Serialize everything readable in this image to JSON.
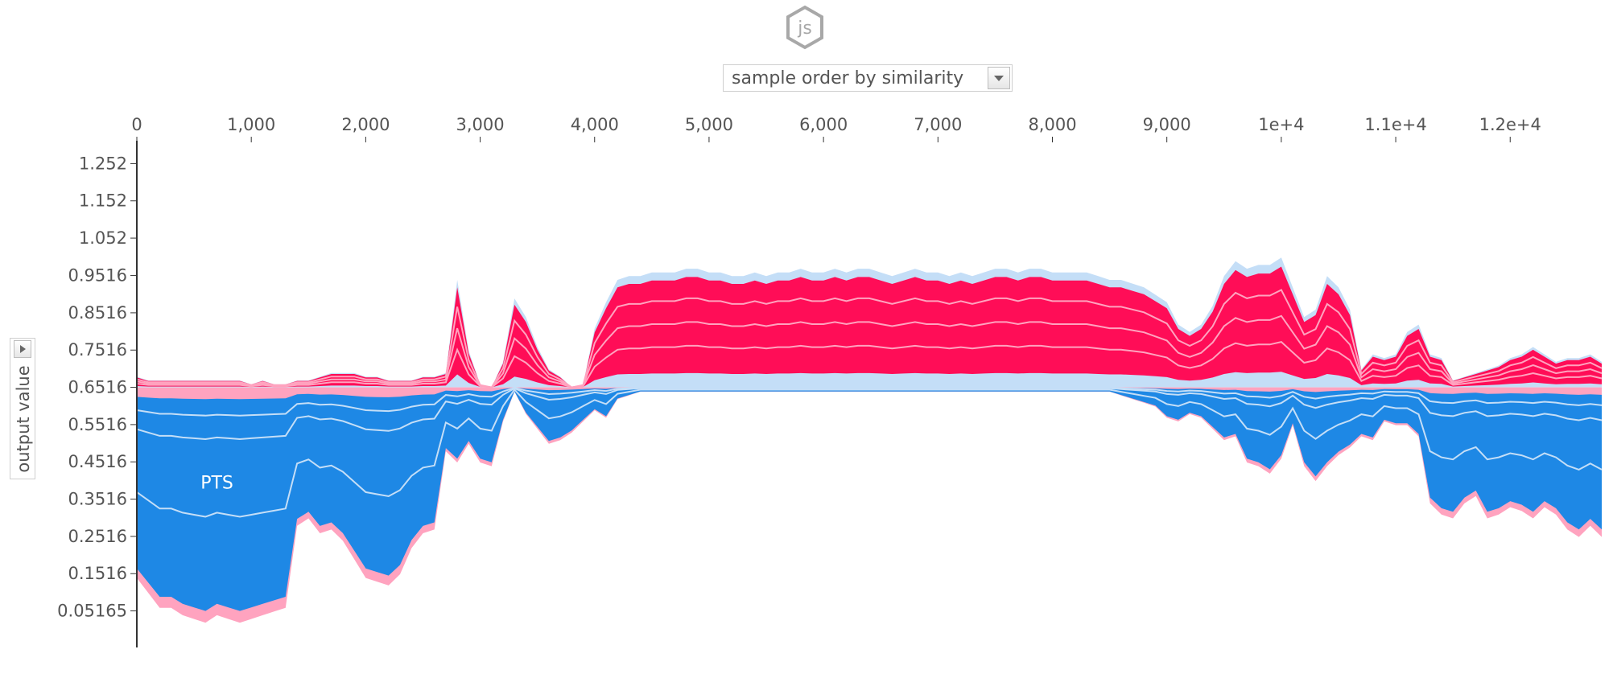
{
  "badge": {
    "label": "js",
    "icon": "js-hexagon-icon"
  },
  "controls": {
    "order_select": {
      "selected": "sample order by similarity",
      "icon": "chevron-down-icon"
    },
    "yaxis_select": {
      "selected": "output value",
      "icon": "chevron-right-icon"
    }
  },
  "colors": {
    "positive": "#ff0d57",
    "positive_light": "#ffa3bf",
    "negative": "#1e88e5",
    "negative_light": "#c4def7",
    "axis": "#333333",
    "text": "#555555"
  },
  "chart_data": {
    "type": "area",
    "title": "",
    "xlabel": "",
    "ylabel": "output value",
    "x_ticks": [
      "0",
      "1,000",
      "2,000",
      "3,000",
      "4,000",
      "5,000",
      "6,000",
      "7,000",
      "8,000",
      "9,000",
      "1e+4",
      "1.1e+4",
      "1.2e+4"
    ],
    "x_tick_values": [
      0,
      1000,
      2000,
      3000,
      4000,
      5000,
      6000,
      7000,
      8000,
      9000,
      10000,
      11000,
      12000
    ],
    "y_ticks": [
      "1.252",
      "1.152",
      "1.052",
      "0.9516",
      "0.8516",
      "0.7516",
      "0.6516",
      "0.5516",
      "0.4516",
      "0.3516",
      "0.2516",
      "0.1516",
      "0.05165"
    ],
    "y_tick_values": [
      1.252,
      1.152,
      1.052,
      0.9516,
      0.8516,
      0.7516,
      0.6516,
      0.5516,
      0.4516,
      0.3516,
      0.2516,
      0.1516,
      0.05165
    ],
    "xlim": [
      0,
      12800
    ],
    "ylim": [
      -0.04,
      1.35
    ],
    "base_value": 0.6516,
    "annotations": [
      {
        "text": "PTS",
        "x": 700,
        "y": 0.38
      }
    ],
    "series": [
      {
        "x": [
          0,
          100,
          200,
          300,
          400,
          500,
          600,
          700,
          800,
          900,
          1000,
          1100,
          1200,
          1300,
          1400,
          1500,
          1600,
          1700,
          1800,
          1900,
          2000,
          2100,
          2200,
          2300,
          2400,
          2500,
          2600,
          2700,
          2800,
          2900,
          3000,
          3100,
          3200,
          3300,
          3400,
          3500,
          3600,
          3700,
          3800,
          3900,
          4000,
          4100,
          4200,
          4300,
          4400,
          4500,
          4600,
          4700,
          4800,
          4900,
          5000,
          5100,
          5200,
          5300,
          5400,
          5500,
          5600,
          5700,
          5800,
          5900,
          6000,
          6100,
          6200,
          6300,
          6400,
          6500,
          6600,
          6700,
          6800,
          6900,
          7000,
          7100,
          7200,
          7300,
          7400,
          7500,
          7600,
          7700,
          7800,
          7900,
          8000,
          8100,
          8200,
          8300,
          8400,
          8500,
          8600,
          8700,
          8800,
          8900,
          9000,
          9100,
          9200,
          9300,
          9400,
          9500,
          9600,
          9700,
          9800,
          9900,
          10000,
          10100,
          10200,
          10300,
          10400,
          10500,
          10600,
          10700,
          10800,
          10900,
          11000,
          11100,
          11200,
          11300,
          11400,
          11500,
          11600,
          11700,
          11800,
          11900,
          12000,
          12100,
          12200,
          12300,
          12400,
          12500,
          12600,
          12700,
          12800
        ],
        "upper": [
          0.68,
          0.67,
          0.67,
          0.67,
          0.67,
          0.67,
          0.67,
          0.67,
          0.67,
          0.67,
          0.66,
          0.67,
          0.66,
          0.66,
          0.67,
          0.67,
          0.68,
          0.69,
          0.69,
          0.69,
          0.68,
          0.68,
          0.67,
          0.67,
          0.67,
          0.68,
          0.68,
          0.69,
          0.94,
          0.75,
          0.66,
          0.57,
          0.72,
          0.89,
          0.84,
          0.76,
          0.7,
          0.68,
          0.61,
          0.66,
          0.81,
          0.88,
          0.94,
          0.95,
          0.95,
          0.96,
          0.96,
          0.96,
          0.97,
          0.97,
          0.96,
          0.96,
          0.95,
          0.95,
          0.96,
          0.95,
          0.96,
          0.96,
          0.97,
          0.96,
          0.96,
          0.97,
          0.96,
          0.97,
          0.97,
          0.96,
          0.95,
          0.96,
          0.97,
          0.96,
          0.96,
          0.95,
          0.96,
          0.95,
          0.96,
          0.97,
          0.97,
          0.96,
          0.97,
          0.97,
          0.96,
          0.96,
          0.96,
          0.96,
          0.95,
          0.94,
          0.94,
          0.93,
          0.92,
          0.9,
          0.88,
          0.82,
          0.8,
          0.82,
          0.87,
          0.95,
          0.99,
          0.97,
          0.98,
          0.98,
          1.0,
          0.92,
          0.84,
          0.86,
          0.95,
          0.92,
          0.86,
          0.7,
          0.74,
          0.73,
          0.74,
          0.8,
          0.82,
          0.74,
          0.73,
          0.67,
          0.68,
          0.69,
          0.7,
          0.71,
          0.73,
          0.74,
          0.76,
          0.74,
          0.72,
          0.73,
          0.73,
          0.74,
          0.72
        ],
        "lower": [
          0.14,
          0.1,
          0.06,
          0.06,
          0.04,
          0.03,
          0.02,
          0.04,
          0.03,
          0.02,
          0.03,
          0.04,
          0.05,
          0.06,
          0.28,
          0.3,
          0.26,
          0.27,
          0.24,
          0.19,
          0.14,
          0.13,
          0.12,
          0.15,
          0.22,
          0.26,
          0.27,
          0.48,
          0.45,
          0.5,
          0.45,
          0.44,
          0.56,
          0.64,
          0.58,
          0.54,
          0.5,
          0.51,
          0.53,
          0.56,
          0.59,
          0.57,
          0.62,
          0.63,
          0.64,
          0.64,
          0.64,
          0.64,
          0.64,
          0.64,
          0.64,
          0.64,
          0.64,
          0.64,
          0.64,
          0.64,
          0.64,
          0.64,
          0.64,
          0.64,
          0.64,
          0.64,
          0.64,
          0.64,
          0.64,
          0.64,
          0.64,
          0.64,
          0.64,
          0.64,
          0.64,
          0.64,
          0.64,
          0.64,
          0.64,
          0.64,
          0.64,
          0.64,
          0.64,
          0.64,
          0.64,
          0.64,
          0.64,
          0.64,
          0.64,
          0.64,
          0.63,
          0.62,
          0.61,
          0.6,
          0.57,
          0.56,
          0.58,
          0.57,
          0.54,
          0.51,
          0.52,
          0.45,
          0.44,
          0.42,
          0.46,
          0.55,
          0.44,
          0.4,
          0.44,
          0.47,
          0.49,
          0.52,
          0.51,
          0.56,
          0.55,
          0.55,
          0.52,
          0.34,
          0.31,
          0.3,
          0.34,
          0.36,
          0.3,
          0.31,
          0.33,
          0.32,
          0.3,
          0.33,
          0.31,
          0.27,
          0.25,
          0.28,
          0.25
        ]
      }
    ]
  }
}
